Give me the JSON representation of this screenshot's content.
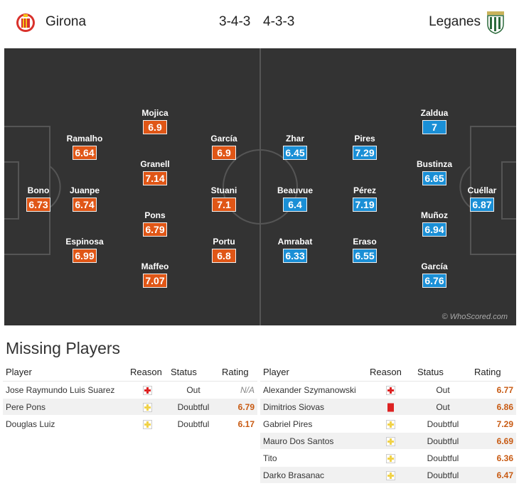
{
  "header": {
    "home_team": "Girona",
    "away_team": "Leganes",
    "home_formation": "3-4-3",
    "away_formation": "4-3-3",
    "home_crest_icon": "girona-crest-icon",
    "away_crest_icon": "leganes-crest-icon"
  },
  "colors": {
    "home_rating": "#e05616",
    "away_rating": "#1a8fd6",
    "pitch": "#333333"
  },
  "pitch": {
    "home_players": [
      {
        "name": "Bono",
        "rating": "6.73"
      },
      {
        "name": "Ramalho",
        "rating": "6.64"
      },
      {
        "name": "Juanpe",
        "rating": "6.74"
      },
      {
        "name": "Espinosa",
        "rating": "6.99"
      },
      {
        "name": "Mojica",
        "rating": "6.9"
      },
      {
        "name": "Granell",
        "rating": "7.14"
      },
      {
        "name": "Pons",
        "rating": "6.79"
      },
      {
        "name": "Maffeo",
        "rating": "7.07"
      },
      {
        "name": "García",
        "rating": "6.9"
      },
      {
        "name": "Stuani",
        "rating": "7.1"
      },
      {
        "name": "Portu",
        "rating": "6.8"
      }
    ],
    "away_players": [
      {
        "name": "Zhar",
        "rating": "6.45"
      },
      {
        "name": "Beauvue",
        "rating": "6.4"
      },
      {
        "name": "Amrabat",
        "rating": "6.33"
      },
      {
        "name": "Pires",
        "rating": "7.29"
      },
      {
        "name": "Pérez",
        "rating": "7.19"
      },
      {
        "name": "Eraso",
        "rating": "6.55"
      },
      {
        "name": "Zaldua",
        "rating": "7"
      },
      {
        "name": "Bustinza",
        "rating": "6.65"
      },
      {
        "name": "Muñoz",
        "rating": "6.94"
      },
      {
        "name": "García",
        "rating": "6.76"
      },
      {
        "name": "Cuéllar",
        "rating": "6.87"
      }
    ],
    "watermark": "© WhoScored.com"
  },
  "missing": {
    "title": "Missing Players",
    "columns": {
      "player": "Player",
      "reason": "Reason",
      "status": "Status",
      "rating": "Rating"
    },
    "home": [
      {
        "player": "Jose Raymundo Luis Suarez",
        "reason": "injury",
        "status": "Out",
        "rating": "N/A"
      },
      {
        "player": "Pere Pons",
        "reason": "doubtful",
        "status": "Doubtful",
        "rating": "6.79"
      },
      {
        "player": "Douglas Luiz",
        "reason": "doubtful",
        "status": "Doubtful",
        "rating": "6.17"
      }
    ],
    "away": [
      {
        "player": "Alexander Szymanowski",
        "reason": "injury",
        "status": "Out",
        "rating": "6.77"
      },
      {
        "player": "Dimitrios Siovas",
        "reason": "red-card",
        "status": "Out",
        "rating": "6.86"
      },
      {
        "player": "Gabriel Pires",
        "reason": "doubtful",
        "status": "Doubtful",
        "rating": "7.29"
      },
      {
        "player": "Mauro Dos Santos",
        "reason": "doubtful",
        "status": "Doubtful",
        "rating": "6.69"
      },
      {
        "player": "Tito",
        "reason": "doubtful",
        "status": "Doubtful",
        "rating": "6.36"
      },
      {
        "player": "Darko Brasanac",
        "reason": "doubtful",
        "status": "Doubtful",
        "rating": "6.47"
      }
    ]
  }
}
